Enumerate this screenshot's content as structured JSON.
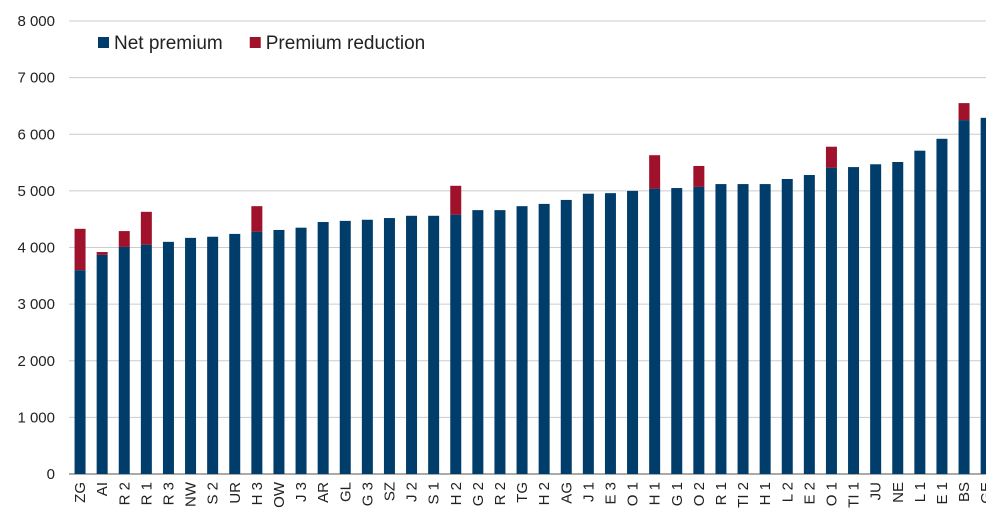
{
  "chart_data": {
    "type": "stacked_bar",
    "categories": [
      "ZG",
      "AI",
      "R 2",
      "R 1",
      "R 3",
      "NW",
      "S 2",
      "UR",
      "H 3",
      "OW",
      "J 3",
      "AR",
      "GL",
      "G 3",
      "SZ",
      "J 2",
      "S 1",
      "H 2",
      "G 2",
      "R 2",
      "TG",
      "H 2",
      "AG",
      "J 1",
      "E 3",
      "O 1",
      "H 1",
      "G 1",
      "O 2",
      "R 1",
      "TI 2",
      "H 1",
      "L 2",
      "E 2",
      "O 1",
      "TI 1",
      "JU",
      "NE",
      "L 1",
      "E 1",
      "BS",
      "GE"
    ],
    "series": [
      {
        "name": "Net premium",
        "color": "#003d6b",
        "values": [
          3600,
          3870,
          4010,
          4050,
          4100,
          4170,
          4190,
          4240,
          4280,
          4310,
          4350,
          4450,
          4470,
          4490,
          4520,
          4560,
          4560,
          4580,
          4660,
          4660,
          4730,
          4770,
          4840,
          4950,
          4960,
          5000,
          5040,
          5050,
          5070,
          5120,
          5120,
          5120,
          5210,
          5280,
          5410,
          5420,
          5470,
          5510,
          5710,
          5920,
          6250,
          6290
        ]
      },
      {
        "name": "Premium reduction",
        "color": "#a0112b",
        "values": [
          730,
          50,
          280,
          580,
          0,
          0,
          0,
          0,
          450,
          0,
          0,
          0,
          0,
          0,
          0,
          0,
          0,
          510,
          0,
          0,
          0,
          0,
          0,
          0,
          0,
          0,
          590,
          0,
          370,
          0,
          0,
          0,
          0,
          0,
          370,
          0,
          0,
          0,
          0,
          0,
          300,
          0
        ]
      }
    ],
    "ylim": [
      0,
      8000
    ],
    "yticks": [
      0,
      {
        "value": 1000,
        "label": "1 000"
      },
      {
        "value": 2000,
        "label": "2 000"
      },
      {
        "value": 3000,
        "label": "3 000"
      },
      {
        "value": 4000,
        "label": "4 000"
      },
      {
        "value": 5000,
        "label": "5 000"
      },
      {
        "value": 6000,
        "label": "6 000"
      },
      {
        "value": 7000,
        "label": "7 000"
      },
      {
        "value": 8000,
        "label": "8 000"
      }
    ],
    "grid": true,
    "legend": "top-left"
  }
}
